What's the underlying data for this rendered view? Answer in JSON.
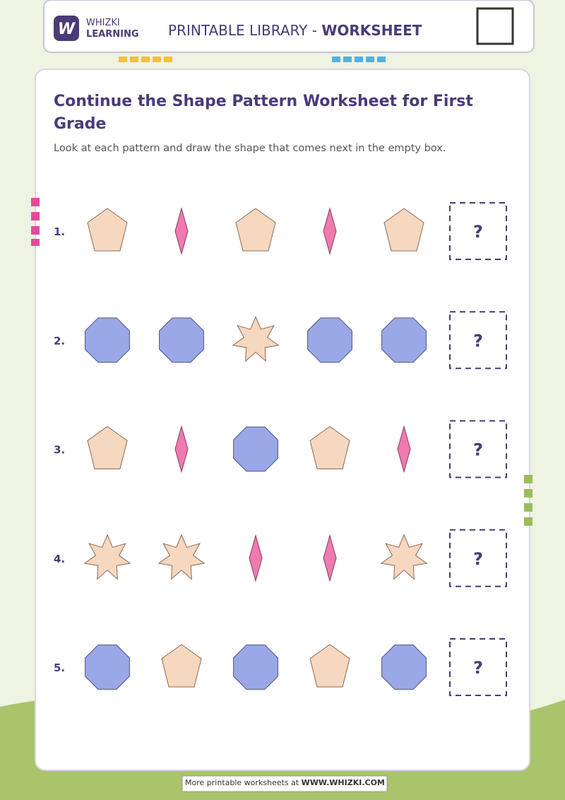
{
  "header": {
    "logo_top": "WHIZKI",
    "logo_bottom": "LEARNING",
    "library": "PRINTABLE LIBRARY - ",
    "kind": "WORKSHEET"
  },
  "title": "Continue the Shape Pattern Worksheet for First Grade",
  "instructions": "Look at each pattern and draw the shape that comes next in the empty box.",
  "rows": [
    {
      "number": "1.",
      "answer": "?"
    },
    {
      "number": "2.",
      "answer": "?"
    },
    {
      "number": "3.",
      "answer": "?"
    },
    {
      "number": "4.",
      "answer": "?"
    },
    {
      "number": "5.",
      "answer": "?"
    }
  ],
  "footer": {
    "text": "More printable worksheets at ",
    "link": "WWW.WHIZKI.COM"
  }
}
